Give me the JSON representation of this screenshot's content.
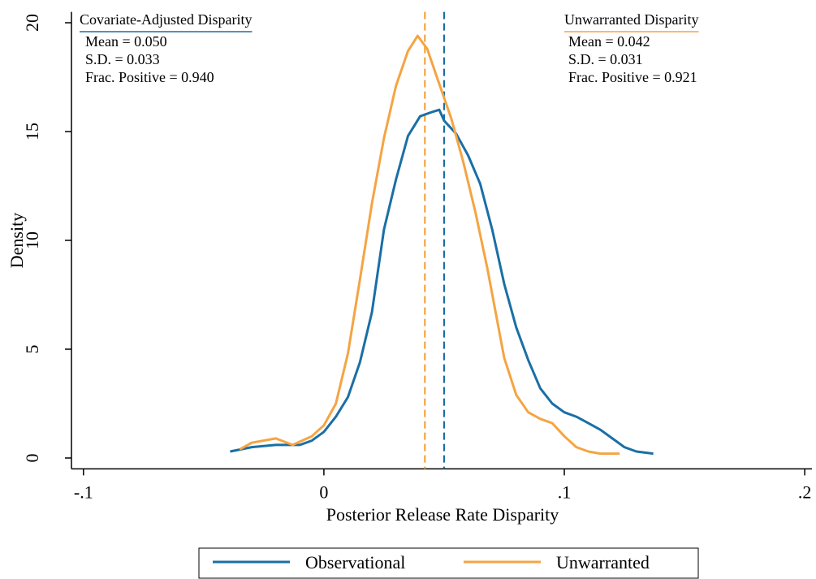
{
  "chart_data": {
    "type": "line",
    "xlabel": "Posterior Release Rate Disparity",
    "ylabel": "Density",
    "xlim": [
      -0.105,
      0.203
    ],
    "ylim": [
      -0.5,
      20.5
    ],
    "xticks": [
      {
        "value": -0.1,
        "label": "-.1"
      },
      0,
      {
        "value": 0.1,
        "label": ".1"
      },
      {
        "value": 0.2,
        "label": ".2"
      }
    ],
    "yticks": [
      0,
      5,
      10,
      15,
      20
    ],
    "legend": "bottom",
    "series": [
      {
        "name": "Observational",
        "color": "#1a6fa6",
        "x": [
          -0.039,
          -0.03,
          -0.02,
          -0.01,
          -0.005,
          0,
          0.005,
          0.01,
          0.015,
          0.02,
          0.025,
          0.03,
          0.035,
          0.04,
          0.045,
          0.048,
          0.05,
          0.055,
          0.06,
          0.065,
          0.07,
          0.075,
          0.08,
          0.085,
          0.09,
          0.095,
          0.1,
          0.105,
          0.11,
          0.115,
          0.12,
          0.125,
          0.13,
          0.137
        ],
        "values": [
          0.3,
          0.5,
          0.6,
          0.6,
          0.8,
          1.2,
          1.9,
          2.8,
          4.4,
          6.7,
          10.5,
          12.8,
          14.8,
          15.7,
          15.9,
          16.0,
          15.5,
          14.9,
          13.9,
          12.6,
          10.5,
          8.0,
          6.0,
          4.5,
          3.2,
          2.5,
          2.1,
          1.9,
          1.6,
          1.3,
          0.9,
          0.5,
          0.3,
          0.2
        ]
      },
      {
        "name": "Unwarranted",
        "color": "#f5a443",
        "x": [
          -0.035,
          -0.03,
          -0.02,
          -0.013,
          -0.005,
          0,
          0.005,
          0.01,
          0.015,
          0.02,
          0.025,
          0.03,
          0.035,
          0.039,
          0.043,
          0.047,
          0.053,
          0.058,
          0.063,
          0.068,
          0.075,
          0.08,
          0.085,
          0.09,
          0.095,
          0.1,
          0.105,
          0.11,
          0.115,
          0.123
        ],
        "values": [
          0.4,
          0.7,
          0.9,
          0.6,
          1.0,
          1.5,
          2.5,
          4.8,
          8.2,
          11.7,
          14.7,
          17.1,
          18.7,
          19.4,
          18.8,
          17.5,
          15.6,
          13.6,
          11.3,
          8.7,
          4.6,
          2.9,
          2.1,
          1.8,
          1.6,
          1.0,
          0.5,
          0.3,
          0.2,
          0.2
        ]
      }
    ],
    "vlines": [
      {
        "x": 0.042,
        "color": "#f5a443"
      },
      {
        "x": 0.05,
        "color": "#1a6fa6"
      }
    ],
    "annotations": [
      {
        "title": "Covariate-Adjusted Disparity",
        "color": "#1a6fa6",
        "lines": [
          "Mean = 0.050",
          "S.D. = 0.033",
          "Frac. Positive = 0.940"
        ]
      },
      {
        "title": "Unwarranted Disparity",
        "color": "#f5a443",
        "lines": [
          "Mean = 0.042",
          "S.D. = 0.031",
          "Frac. Positive = 0.921"
        ]
      }
    ]
  }
}
